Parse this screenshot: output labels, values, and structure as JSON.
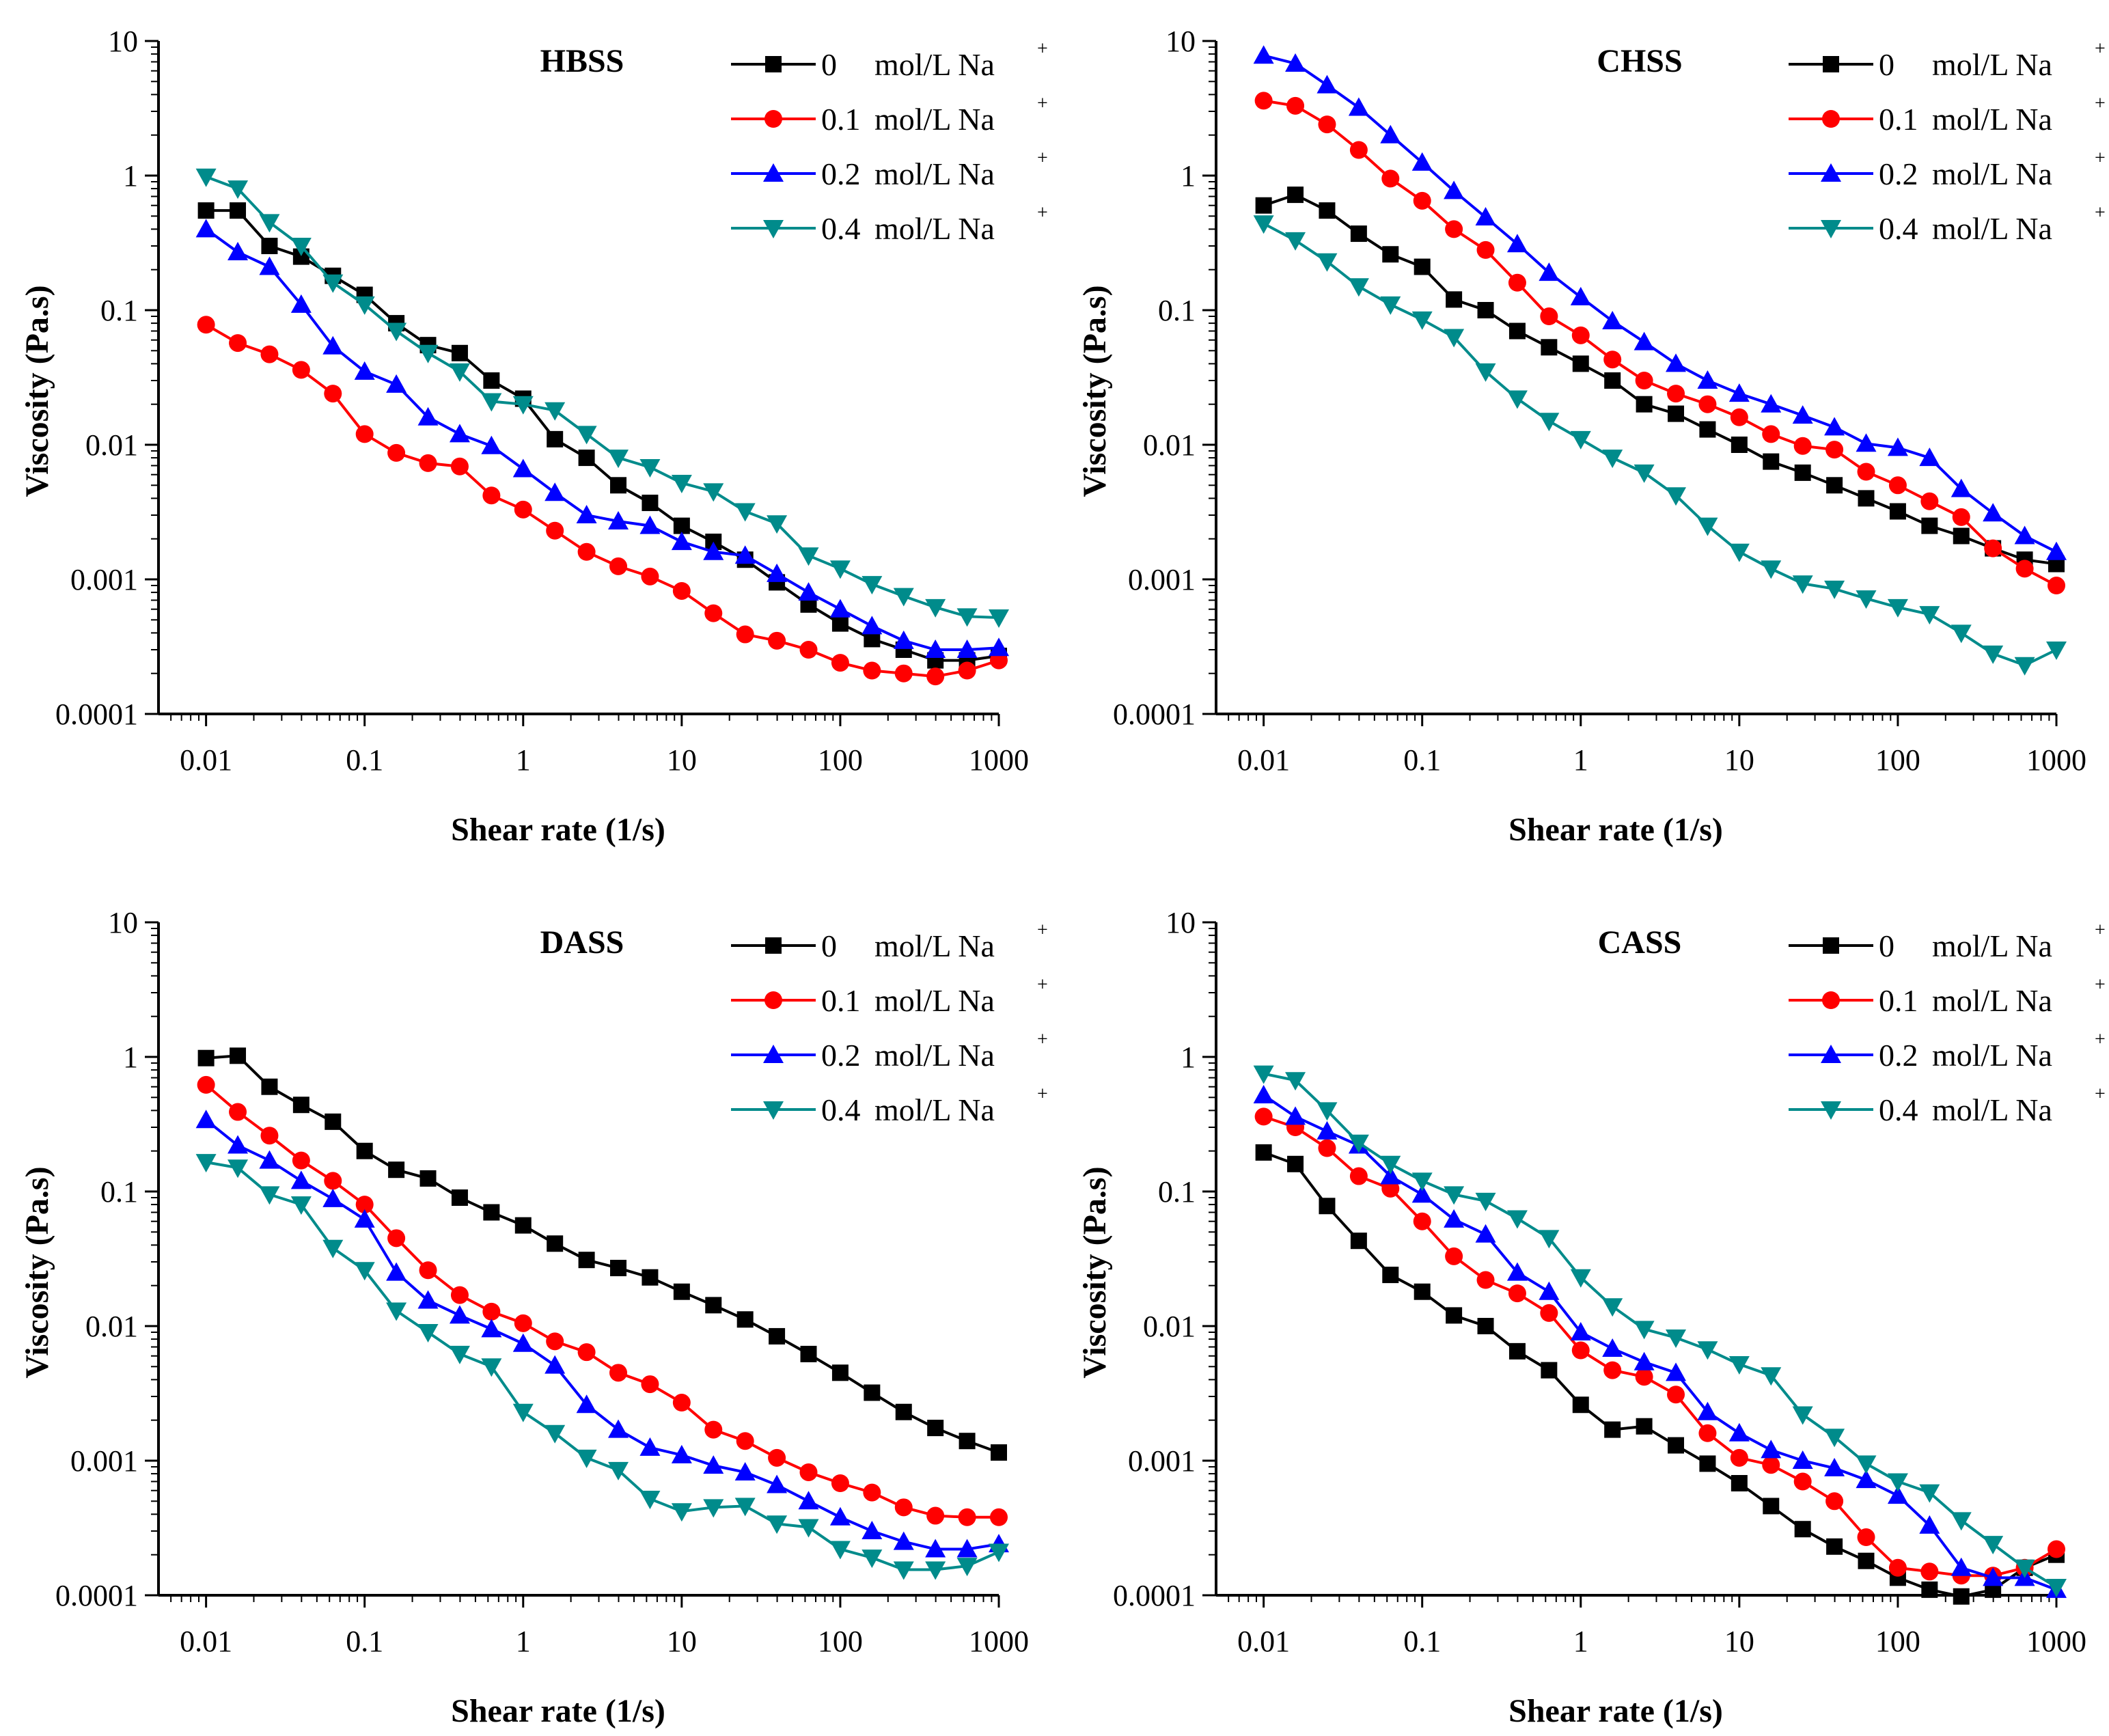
{
  "chart_data": [
    {
      "type": "line",
      "title": "HBSS",
      "xlabel": "Shear rate (1/s)",
      "ylabel": "Viscosity (Pa.s)",
      "xscale": "log",
      "yscale": "log",
      "xlim": [
        0.01,
        1000
      ],
      "ylim": [
        0.0001,
        10
      ],
      "xticks": [
        "0.01",
        "0.1",
        "1",
        "10",
        "100",
        "1000"
      ],
      "yticks": [
        "0.0001",
        "0.001",
        "0.01",
        "0.1",
        "1",
        "10"
      ],
      "legend_position": "top-right",
      "series": [
        {
          "name": "0",
          "unit": "mol/L Na",
          "sup": "+",
          "color": "#000000",
          "marker": "square",
          "values": [
            0.55,
            0.55,
            0.3,
            0.25,
            0.18,
            0.13,
            0.08,
            0.055,
            0.048,
            0.03,
            0.022,
            0.011,
            0.008,
            0.005,
            0.0037,
            0.0025,
            0.0019,
            0.0014,
            0.00095,
            0.00065,
            0.00047,
            0.00036,
            0.0003,
            0.00025,
            0.00025,
            0.00027
          ]
        },
        {
          "name": "0.1",
          "unit": "mol/L Na",
          "sup": "+",
          "color": "#ff0000",
          "marker": "circle",
          "values": [
            0.078,
            0.057,
            0.047,
            0.036,
            0.024,
            0.012,
            0.0087,
            0.0073,
            0.0069,
            0.0042,
            0.0033,
            0.0023,
            0.0016,
            0.00125,
            0.00105,
            0.00082,
            0.00056,
            0.00039,
            0.00035,
            0.0003,
            0.00024,
            0.00021,
            0.0002,
            0.00019,
            0.00021,
            0.00025
          ]
        },
        {
          "name": "0.2",
          "unit": "mol/L Na",
          "sup": "+",
          "color": "#0000ff",
          "marker": "triangle-up",
          "values": [
            0.4,
            0.27,
            0.21,
            0.11,
            0.054,
            0.035,
            0.028,
            0.016,
            0.012,
            0.0098,
            0.0066,
            0.0044,
            0.003,
            0.0027,
            0.0025,
            0.0019,
            0.0016,
            0.0015,
            0.0011,
            0.0008,
            0.0006,
            0.00045,
            0.00035,
            0.0003,
            0.0003,
            0.00031
          ]
        },
        {
          "name": "0.4",
          "unit": "mol/L Na",
          "sup": "+",
          "color": "#008b8b",
          "marker": "triangle-down",
          "values": [
            0.98,
            0.8,
            0.45,
            0.3,
            0.16,
            0.11,
            0.07,
            0.048,
            0.035,
            0.021,
            0.02,
            0.018,
            0.012,
            0.008,
            0.0068,
            0.0052,
            0.0045,
            0.0032,
            0.0026,
            0.0015,
            0.0012,
            0.00092,
            0.00075,
            0.00062,
            0.00053,
            0.00052
          ]
        }
      ]
    },
    {
      "type": "line",
      "title": "CHSS",
      "xlabel": "Shear rate (1/s)",
      "ylabel": "Viscosity (Pa.s)",
      "xscale": "log",
      "yscale": "log",
      "xlim": [
        0.01,
        1000
      ],
      "ylim": [
        0.0001,
        10
      ],
      "xticks": [
        "0.01",
        "0.1",
        "1",
        "10",
        "100",
        "1000"
      ],
      "yticks": [
        "0.0001",
        "0.001",
        "0.01",
        "0.1",
        "1",
        "10"
      ],
      "legend_position": "top-right",
      "series": [
        {
          "name": "0",
          "unit": "mol/L Na",
          "sup": "+",
          "color": "#000000",
          "marker": "square",
          "values": [
            0.6,
            0.72,
            0.55,
            0.37,
            0.26,
            0.21,
            0.12,
            0.1,
            0.07,
            0.053,
            0.04,
            0.03,
            0.02,
            0.017,
            0.013,
            0.01,
            0.0075,
            0.0062,
            0.005,
            0.004,
            0.0032,
            0.0025,
            0.0021,
            0.0017,
            0.0014,
            0.0013
          ]
        },
        {
          "name": "0.1",
          "unit": "mol/L Na",
          "sup": "+",
          "color": "#ff0000",
          "marker": "circle",
          "values": [
            3.6,
            3.3,
            2.4,
            1.55,
            0.95,
            0.65,
            0.4,
            0.28,
            0.16,
            0.09,
            0.065,
            0.043,
            0.03,
            0.024,
            0.02,
            0.016,
            0.012,
            0.0098,
            0.0092,
            0.0063,
            0.005,
            0.0038,
            0.0029,
            0.0017,
            0.0012,
            0.0009
          ]
        },
        {
          "name": "0.2",
          "unit": "mol/L Na",
          "sup": "+",
          "color": "#0000ff",
          "marker": "triangle-up",
          "values": [
            7.8,
            6.8,
            4.7,
            3.2,
            2.0,
            1.25,
            0.77,
            0.49,
            0.31,
            0.19,
            0.125,
            0.083,
            0.058,
            0.04,
            0.03,
            0.024,
            0.02,
            0.0165,
            0.0135,
            0.0102,
            0.0095,
            0.008,
            0.0047,
            0.0031,
            0.0021,
            0.0016
          ]
        },
        {
          "name": "0.4",
          "unit": "mol/L Na",
          "sup": "+",
          "color": "#008b8b",
          "marker": "triangle-down",
          "values": [
            0.44,
            0.33,
            0.23,
            0.15,
            0.11,
            0.085,
            0.063,
            0.035,
            0.022,
            0.015,
            0.011,
            0.008,
            0.0062,
            0.0042,
            0.0025,
            0.0016,
            0.0012,
            0.00093,
            0.00085,
            0.00072,
            0.00062,
            0.00055,
            0.0004,
            0.00028,
            0.00023,
            0.0003
          ]
        }
      ]
    },
    {
      "type": "line",
      "title": "DASS",
      "xlabel": "Shear rate (1/s)",
      "ylabel": "Viscosity (Pa.s)",
      "xscale": "log",
      "yscale": "log",
      "xlim": [
        0.01,
        1000
      ],
      "ylim": [
        0.0001,
        10
      ],
      "xticks": [
        "0.01",
        "0.1",
        "1",
        "10",
        "100",
        "1000"
      ],
      "yticks": [
        "0.0001",
        "0.001",
        "0.01",
        "0.1",
        "1",
        "10"
      ],
      "legend_position": "top-right",
      "series": [
        {
          "name": "0",
          "unit": "mol/L Na",
          "sup": "+",
          "color": "#000000",
          "marker": "square",
          "values": [
            0.98,
            1.02,
            0.6,
            0.44,
            0.33,
            0.2,
            0.145,
            0.125,
            0.09,
            0.07,
            0.056,
            0.041,
            0.031,
            0.027,
            0.023,
            0.018,
            0.0143,
            0.0112,
            0.0084,
            0.0062,
            0.0045,
            0.0032,
            0.0023,
            0.00175,
            0.0014,
            0.00115
          ]
        },
        {
          "name": "0.1",
          "unit": "mol/L Na",
          "sup": "+",
          "color": "#ff0000",
          "marker": "circle",
          "values": [
            0.62,
            0.39,
            0.26,
            0.17,
            0.12,
            0.08,
            0.045,
            0.026,
            0.017,
            0.0128,
            0.0105,
            0.0077,
            0.0064,
            0.0045,
            0.0037,
            0.0027,
            0.0017,
            0.0014,
            0.00105,
            0.00082,
            0.00068,
            0.00058,
            0.00045,
            0.00039,
            0.00038,
            0.00038
          ]
        },
        {
          "name": "0.2",
          "unit": "mol/L Na",
          "sup": "+",
          "color": "#0000ff",
          "marker": "triangle-up",
          "values": [
            0.34,
            0.22,
            0.17,
            0.12,
            0.088,
            0.062,
            0.025,
            0.0155,
            0.012,
            0.0095,
            0.0074,
            0.0051,
            0.0026,
            0.0017,
            0.00125,
            0.0011,
            0.00092,
            0.00082,
            0.00066,
            0.0005,
            0.00038,
            0.0003,
            0.00025,
            0.00022,
            0.00022,
            0.00024
          ]
        },
        {
          "name": "0.4",
          "unit": "mol/L Na",
          "sup": "+",
          "color": "#008b8b",
          "marker": "triangle-down",
          "values": [
            0.165,
            0.15,
            0.095,
            0.08,
            0.038,
            0.026,
            0.013,
            0.009,
            0.0062,
            0.005,
            0.0023,
            0.0016,
            0.00105,
            0.00085,
            0.00052,
            0.00042,
            0.00045,
            0.00046,
            0.00034,
            0.00032,
            0.00022,
            0.00019,
            0.000155,
            0.000155,
            0.000165,
            0.00021
          ]
        }
      ]
    },
    {
      "type": "line",
      "title": "CASS",
      "xlabel": "Shear rate (1/s)",
      "ylabel": "Viscosity (Pa.s)",
      "xscale": "log",
      "yscale": "log",
      "xlim": [
        0.01,
        1000
      ],
      "ylim": [
        0.0001,
        10
      ],
      "xticks": [
        "0.01",
        "0.1",
        "1",
        "10",
        "100",
        "1000"
      ],
      "yticks": [
        "0.0001",
        "0.001",
        "0.01",
        "0.1",
        "1",
        "10"
      ],
      "legend_position": "top-right",
      "series": [
        {
          "name": "0",
          "unit": "mol/L Na",
          "sup": "+",
          "color": "#000000",
          "marker": "square",
          "values": [
            0.195,
            0.16,
            0.078,
            0.043,
            0.024,
            0.018,
            0.012,
            0.01,
            0.0065,
            0.0047,
            0.0026,
            0.0017,
            0.0018,
            0.0013,
            0.00095,
            0.00068,
            0.00046,
            0.00031,
            0.00023,
            0.00018,
            0.000135,
            0.00011,
            9.8e-05,
            0.00011,
            0.00016,
            0.0002
          ]
        },
        {
          "name": "0.1",
          "unit": "mol/L Na",
          "sup": "+",
          "color": "#ff0000",
          "marker": "circle",
          "values": [
            0.36,
            0.3,
            0.21,
            0.13,
            0.105,
            0.06,
            0.033,
            0.022,
            0.0175,
            0.0125,
            0.0066,
            0.0047,
            0.0042,
            0.0031,
            0.0016,
            0.00105,
            0.00093,
            0.0007,
            0.0005,
            0.00027,
            0.00016,
            0.00015,
            0.00014,
            0.00014,
            0.00016,
            0.00022
          ]
        },
        {
          "name": "0.2",
          "unit": "mol/L Na",
          "sup": "+",
          "color": "#0000ff",
          "marker": "triangle-up",
          "values": [
            0.52,
            0.36,
            0.28,
            0.22,
            0.13,
            0.095,
            0.062,
            0.048,
            0.025,
            0.018,
            0.009,
            0.0068,
            0.0054,
            0.0045,
            0.0023,
            0.0016,
            0.0012,
            0.001,
            0.00088,
            0.00072,
            0.00055,
            0.00033,
            0.00016,
            0.000135,
            0.000135,
            0.00011
          ]
        },
        {
          "name": "0.4",
          "unit": "mol/L Na",
          "sup": "+",
          "color": "#008b8b",
          "marker": "triangle-down",
          "values": [
            0.75,
            0.67,
            0.4,
            0.23,
            0.16,
            0.12,
            0.095,
            0.085,
            0.063,
            0.045,
            0.023,
            0.014,
            0.0095,
            0.0082,
            0.0067,
            0.0052,
            0.0043,
            0.0022,
            0.0015,
            0.00095,
            0.0007,
            0.00058,
            0.00036,
            0.00024,
            0.00016,
            0.000115
          ]
        }
      ]
    }
  ]
}
